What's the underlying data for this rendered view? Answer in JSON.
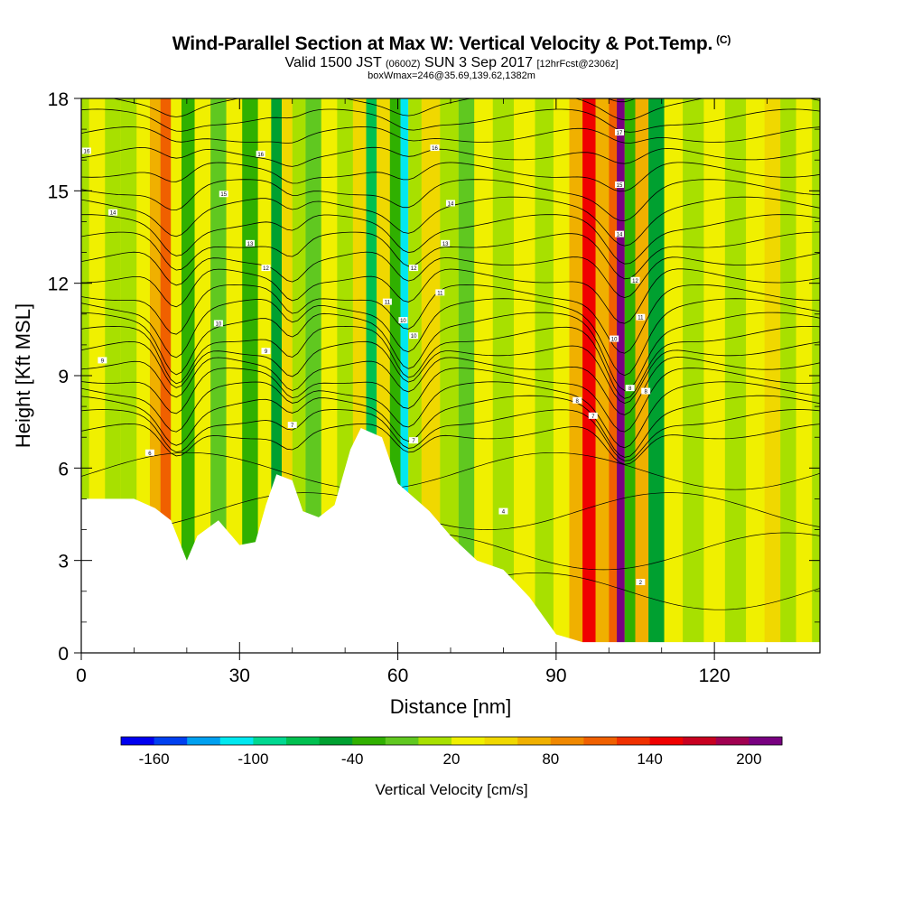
{
  "header": {
    "title": "Wind-Parallel Section at Max W: Vertical Velocity & Pot.Temp.",
    "copyright": "(C)",
    "valid_prefix": "Valid 1500 JST",
    "valid_utc": "(0600Z)",
    "valid_date": "SUN 3 Sep 2017",
    "forecast": "[12hrFcst@2306z]",
    "location_line": "boxWmax=246@35.69,139.62,1382m"
  },
  "chart_data": {
    "type": "heatmap",
    "title": "Wind-Parallel Section at Max W: Vertical Velocity & Pot.Temp.",
    "xlabel": "Distance [nm]",
    "ylabel": "Height [Kft MSL]",
    "xlim": [
      0,
      140
    ],
    "ylim": [
      0,
      18
    ],
    "xticks": [
      0,
      30,
      60,
      90,
      120
    ],
    "yticks": [
      0,
      3,
      6,
      9,
      12,
      15,
      18
    ],
    "colorbar": {
      "label": "Vertical Velocity [cm/s]",
      "tick_labels": [
        "-160",
        "-100",
        "-40",
        "20",
        "80",
        "140",
        "200"
      ],
      "tick_values": [
        -160,
        -100,
        -40,
        20,
        80,
        140,
        200
      ],
      "levels": [
        -180,
        -160,
        -140,
        -120,
        -100,
        -80,
        -60,
        -40,
        -20,
        0,
        20,
        40,
        60,
        80,
        100,
        120,
        140,
        160,
        180,
        200,
        220
      ],
      "colors": [
        "#0000f0",
        "#0040f0",
        "#00a0f0",
        "#00e8f0",
        "#00d890",
        "#00c050",
        "#00a030",
        "#30b000",
        "#60c820",
        "#a8e000",
        "#f0f000",
        "#f0d800",
        "#f0b000",
        "#f08800",
        "#f06000",
        "#f03000",
        "#f00000",
        "#c80020",
        "#a00050",
        "#780080"
      ]
    },
    "columns": [
      {
        "x": 0,
        "value": 10
      },
      {
        "x": 3,
        "value": 25
      },
      {
        "x": 6,
        "value": 8
      },
      {
        "x": 9,
        "value": 15
      },
      {
        "x": 12,
        "value": 30
      },
      {
        "x": 14,
        "value": 75
      },
      {
        "x": 16,
        "value": 110
      },
      {
        "x": 18,
        "value": 20
      },
      {
        "x": 20,
        "value": -35
      },
      {
        "x": 23,
        "value": 25
      },
      {
        "x": 26,
        "value": -15
      },
      {
        "x": 29,
        "value": 30
      },
      {
        "x": 32,
        "value": -30
      },
      {
        "x": 35,
        "value": 35
      },
      {
        "x": 37,
        "value": -60
      },
      {
        "x": 39,
        "value": 50
      },
      {
        "x": 41,
        "value": 15
      },
      {
        "x": 44,
        "value": -20
      },
      {
        "x": 47,
        "value": 25
      },
      {
        "x": 50,
        "value": 15
      },
      {
        "x": 53,
        "value": 40
      },
      {
        "x": 55,
        "value": -70
      },
      {
        "x": 57,
        "value": 45
      },
      {
        "x": 60,
        "value": -35
      },
      {
        "x": 61,
        "value": -110
      },
      {
        "x": 63,
        "value": 15
      },
      {
        "x": 66,
        "value": 55
      },
      {
        "x": 70,
        "value": 10
      },
      {
        "x": 73,
        "value": -20
      },
      {
        "x": 76,
        "value": 30
      },
      {
        "x": 80,
        "value": 15
      },
      {
        "x": 84,
        "value": 25
      },
      {
        "x": 88,
        "value": 10
      },
      {
        "x": 91,
        "value": 25
      },
      {
        "x": 94,
        "value": 60
      },
      {
        "x": 96,
        "value": 150
      },
      {
        "x": 99,
        "value": 70
      },
      {
        "x": 101,
        "value": 110
      },
      {
        "x": 102,
        "value": 210
      },
      {
        "x": 104,
        "value": -25
      },
      {
        "x": 106,
        "value": 75
      },
      {
        "x": 109,
        "value": -45
      },
      {
        "x": 112,
        "value": 30
      },
      {
        "x": 116,
        "value": 10
      },
      {
        "x": 120,
        "value": 25
      },
      {
        "x": 124,
        "value": 5
      },
      {
        "x": 128,
        "value": 20
      },
      {
        "x": 131,
        "value": 45
      },
      {
        "x": 134,
        "value": 10
      },
      {
        "x": 137,
        "value": 20
      },
      {
        "x": 140,
        "value": 15
      }
    ],
    "terrain": [
      [
        0,
        5.0
      ],
      [
        10,
        5.0
      ],
      [
        14,
        4.7
      ],
      [
        17,
        4.3
      ],
      [
        20,
        3.0
      ],
      [
        22,
        3.8
      ],
      [
        26,
        4.3
      ],
      [
        30,
        3.5
      ],
      [
        33,
        3.6
      ],
      [
        35,
        4.8
      ],
      [
        37,
        5.8
      ],
      [
        40,
        5.6
      ],
      [
        42,
        4.6
      ],
      [
        45,
        4.4
      ],
      [
        48,
        4.8
      ],
      [
        51,
        6.6
      ],
      [
        53,
        7.3
      ],
      [
        57,
        7.0
      ],
      [
        60,
        5.5
      ],
      [
        66,
        4.6
      ],
      [
        70,
        3.8
      ],
      [
        75,
        3.0
      ],
      [
        80,
        2.7
      ],
      [
        85,
        1.8
      ],
      [
        90,
        0.6
      ],
      [
        95,
        0.35
      ],
      [
        140,
        0.35
      ]
    ],
    "theta_contours": [
      {
        "label": "16",
        "x": 1,
        "y": 16.3
      },
      {
        "label": "14",
        "x": 6,
        "y": 14.3
      },
      {
        "label": "9",
        "x": 4,
        "y": 9.5
      },
      {
        "label": "6",
        "x": 13,
        "y": 6.5
      },
      {
        "label": "15",
        "x": 27,
        "y": 14.9
      },
      {
        "label": "13",
        "x": 32,
        "y": 13.3
      },
      {
        "label": "12",
        "x": 35,
        "y": 12.5
      },
      {
        "label": "10",
        "x": 26,
        "y": 10.7
      },
      {
        "label": "9",
        "x": 35,
        "y": 9.8
      },
      {
        "label": "7",
        "x": 40,
        "y": 7.4
      },
      {
        "label": "16",
        "x": 34,
        "y": 16.2
      },
      {
        "label": "16",
        "x": 67,
        "y": 16.4
      },
      {
        "label": "14",
        "x": 70,
        "y": 14.6
      },
      {
        "label": "13",
        "x": 69,
        "y": 13.3
      },
      {
        "label": "12",
        "x": 63,
        "y": 12.5
      },
      {
        "label": "11",
        "x": 68,
        "y": 11.7
      },
      {
        "label": "11",
        "x": 58,
        "y": 11.4
      },
      {
        "label": "10",
        "x": 61,
        "y": 10.8
      },
      {
        "label": "10",
        "x": 63,
        "y": 10.3
      },
      {
        "label": "7",
        "x": 63,
        "y": 6.9
      },
      {
        "label": "4",
        "x": 80,
        "y": 4.6
      },
      {
        "label": "8",
        "x": 94,
        "y": 8.2
      },
      {
        "label": "7",
        "x": 97,
        "y": 7.7
      },
      {
        "label": "17",
        "x": 102,
        "y": 16.9
      },
      {
        "label": "15",
        "x": 102,
        "y": 15.2
      },
      {
        "label": "14",
        "x": 102,
        "y": 13.6
      },
      {
        "label": "12",
        "x": 105,
        "y": 12.1
      },
      {
        "label": "11",
        "x": 106,
        "y": 10.9
      },
      {
        "label": "10",
        "x": 101,
        "y": 10.2
      },
      {
        "label": "8",
        "x": 104,
        "y": 8.6
      },
      {
        "label": "8",
        "x": 107,
        "y": 8.5
      },
      {
        "label": "2",
        "x": 106,
        "y": 2.3
      }
    ]
  }
}
